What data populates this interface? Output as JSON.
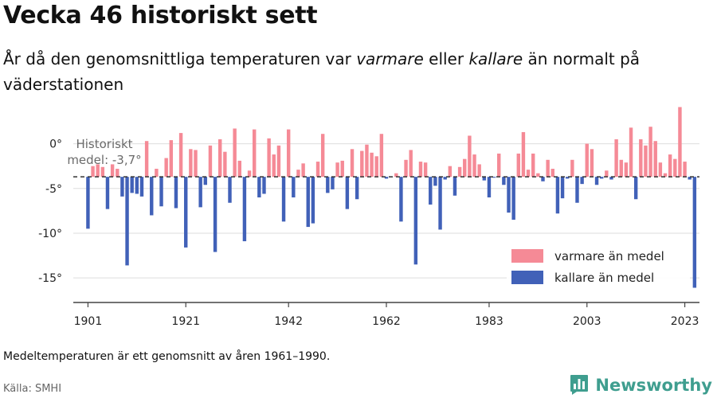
{
  "header": {
    "title": "Vecka 46 historiskt sett",
    "subtitle_pre": "År då den genomsnittliga temperaturen var ",
    "subtitle_warm": "varmare",
    "subtitle_mid": " eller ",
    "subtitle_cold": "kallare",
    "subtitle_post": " än normalt på väderstationen"
  },
  "footer": {
    "note": "Medeltemperaturen är ett genomsnitt av åren 1961–1990.",
    "source": "Källa: SMHI",
    "brand": "Newsworthy"
  },
  "colors": {
    "warm": "#f58a96",
    "cold": "#4161b8",
    "mean_line": "#333333",
    "grid": "#dddddd"
  },
  "chart_data": {
    "type": "bar",
    "title": "Vecka 46 historiskt sett",
    "baseline": -3.7,
    "ylim": [
      -16.5,
      4.5
    ],
    "yticks": [
      0,
      -5,
      -10,
      -15
    ],
    "ytick_labels": [
      "0°",
      "-5°",
      "-10°",
      "-15°"
    ],
    "xlim": [
      1898,
      2026
    ],
    "xticks": [
      1901,
      1921,
      1942,
      1962,
      1983,
      2003,
      2023
    ],
    "xtick_labels": [
      "1901",
      "1921",
      "1942",
      "1962",
      "1983",
      "2003",
      "2023"
    ],
    "annotation": {
      "line1": "Historiskt",
      "line2": "medel: -3,7°",
      "value": -3.7
    },
    "legend": {
      "position": "bottom-right",
      "items": [
        {
          "label": "varmare än medel",
          "color": "#f58a96"
        },
        {
          "label": "kallare än medel",
          "color": "#4161b8"
        }
      ]
    },
    "start_year": 1901,
    "values": [
      -9.5,
      -2.5,
      -2.3,
      -2.6,
      -7.3,
      -2.3,
      -2.8,
      -5.9,
      -13.6,
      -5.5,
      -5.6,
      -5.9,
      0.3,
      -8.0,
      -2.8,
      -7.0,
      -1.6,
      0.4,
      -7.2,
      1.2,
      -11.6,
      -0.6,
      -0.7,
      -7.1,
      -4.6,
      -0.2,
      -12.1,
      0.5,
      -0.9,
      -6.6,
      1.7,
      -1.9,
      -10.9,
      -3.0,
      1.6,
      -6.0,
      -5.6,
      0.6,
      -1.2,
      -0.2,
      -8.7,
      1.6,
      -6.0,
      -2.9,
      -2.2,
      -9.3,
      -8.9,
      -2.0,
      1.1,
      -5.5,
      -5.1,
      -2.1,
      -1.9,
      -7.3,
      -0.6,
      -6.2,
      -0.8,
      -0.1,
      -1.0,
      -1.4,
      1.1,
      -3.9,
      -3.7,
      -3.3,
      -8.7,
      -1.8,
      -0.7,
      -13.5,
      -2.0,
      -2.1,
      -6.8,
      -4.7,
      -9.6,
      -4.0,
      -2.5,
      -5.8,
      -2.6,
      -1.7,
      0.9,
      -1.2,
      -2.3,
      -4.1,
      -6.0,
      -3.8,
      -1.1,
      -4.6,
      -7.7,
      -8.5,
      -1.1,
      1.3,
      -2.9,
      -1.1,
      -3.3,
      -4.2,
      -1.8,
      -2.8,
      -7.8,
      -6.1,
      -3.9,
      -1.8,
      -6.6,
      -4.5,
      0.0,
      -0.6,
      -4.6,
      -3.9,
      -3.0,
      -4.0,
      0.5,
      -1.8,
      -2.1,
      1.8,
      -6.2,
      0.5,
      -0.2,
      1.9,
      0.3,
      -2.1,
      -3.3,
      -1.2,
      -1.7,
      4.1,
      -2.0,
      -4.0,
      -16.1
    ]
  }
}
